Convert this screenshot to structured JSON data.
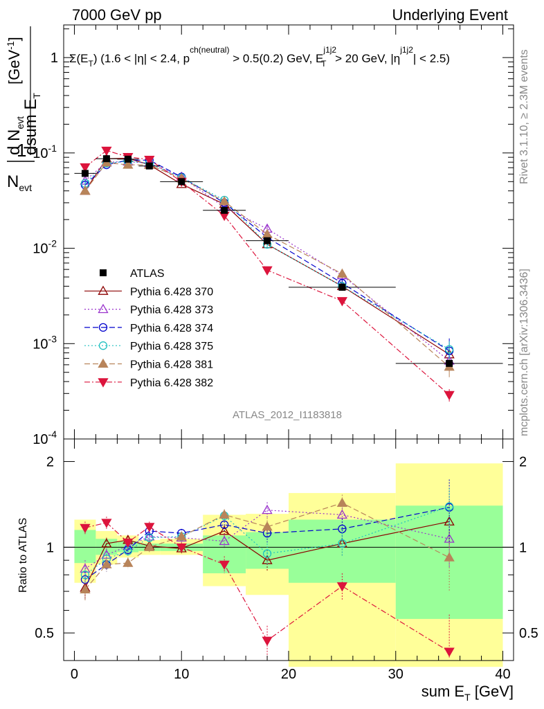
{
  "header": {
    "left": "7000 GeV pp",
    "right": "Underlying Event"
  },
  "subtitle": {
    "a": "Σ(E",
    "b": "T",
    "c": ") (1.6 < |η| < 2.4, p",
    "d": "ch(neutral)",
    "e": " > 0.5(0.2) GeV, E",
    "f": "j1j2",
    "g": "T",
    "h": " > 20 GeV, |η",
    "i": "j1j2",
    "j": "| < 2.5)"
  },
  "analysis_tag": "ATLAS_2012_I1183818",
  "side_text": {
    "rivet": "Rivet 3.1.10, ≥ 2.3M events",
    "mcplots": "mcplots.cern.ch [arXiv:1306.3436]"
  },
  "y_label": {
    "one": "1",
    "nevt": "N",
    "evt_sub": "evt",
    "num": "d N",
    "num_sub": "evt",
    "den": "dsum E",
    "den_sub": "T",
    "unit": "[GeV",
    "unit_sup": "-1",
    "unit_end": "]"
  },
  "ratio_label": "Ratio to ATLAS",
  "x_label": {
    "main": "sum E",
    "sub": "T",
    "unit": " [GeV]"
  },
  "chart_data": {
    "type": "line",
    "x_range": [
      -1,
      41
    ],
    "main_y_range": [
      0.0001,
      2.2
    ],
    "main_y_scale": "log",
    "ratio_y_range": [
      0.4,
      2.4
    ],
    "ratio_y_scale": "log",
    "x_ticks": [
      "0",
      "10",
      "20",
      "30",
      "40"
    ],
    "main_y_ticks": [
      {
        "base": "1",
        "exp": ""
      },
      {
        "base": "10",
        "exp": "-1"
      },
      {
        "base": "10",
        "exp": "-2"
      },
      {
        "base": "10",
        "exp": "-3"
      },
      {
        "base": "10",
        "exp": "-4"
      }
    ],
    "main_y_tick_values": [
      1,
      0.1,
      0.01,
      0.001,
      0.0001
    ],
    "ratio_y_ticks": [
      "2",
      "1",
      "0.5"
    ],
    "ratio_y_tick_values": [
      2,
      1,
      0.5
    ],
    "legend_position": "middle-left",
    "bins": [
      {
        "lo": 0,
        "hi": 2,
        "x": 1
      },
      {
        "lo": 2,
        "hi": 4,
        "x": 3
      },
      {
        "lo": 4,
        "hi": 6,
        "x": 5
      },
      {
        "lo": 6,
        "hi": 8,
        "x": 7
      },
      {
        "lo": 8,
        "hi": 12,
        "x": 10
      },
      {
        "lo": 12,
        "hi": 16,
        "x": 14
      },
      {
        "lo": 16,
        "hi": 20,
        "x": 18
      },
      {
        "lo": 20,
        "hi": 30,
        "x": 25
      },
      {
        "lo": 30,
        "hi": 40,
        "x": 35
      }
    ],
    "data": {
      "name": "ATLAS",
      "color": "#000000",
      "values": [
        0.061,
        0.087,
        0.086,
        0.073,
        0.05,
        0.025,
        0.012,
        0.0039,
        0.00062
      ]
    },
    "band_green": [
      {
        "lo": 0.88,
        "hi": 1.15
      },
      {
        "lo": 0.94,
        "hi": 1.07
      },
      {
        "lo": 0.96,
        "hi": 1.05
      },
      {
        "lo": 0.97,
        "hi": 1.03
      },
      {
        "lo": 0.97,
        "hi": 1.03
      },
      {
        "lo": 0.81,
        "hi": 1.1
      },
      {
        "lo": 0.84,
        "hi": 1.13
      },
      {
        "lo": 0.75,
        "hi": 1.25
      },
      {
        "lo": 0.56,
        "hi": 1.4
      }
    ],
    "band_yellow": [
      {
        "lo": 0.75,
        "hi": 1.25
      },
      {
        "lo": 0.87,
        "hi": 1.14
      },
      {
        "lo": 0.92,
        "hi": 1.1
      },
      {
        "lo": 0.94,
        "hi": 1.06
      },
      {
        "lo": 0.94,
        "hi": 1.07
      },
      {
        "lo": 0.73,
        "hi": 1.3
      },
      {
        "lo": 0.68,
        "hi": 1.31
      },
      {
        "lo": 0.38,
        "hi": 1.55
      },
      {
        "lo": 0.38,
        "hi": 1.97
      }
    ],
    "series": [
      {
        "name": "Pythia 6.428 370",
        "color": "#8b0000",
        "dash": "",
        "marker": "triangle-open",
        "values": [
          0.04,
          0.087,
          0.088,
          0.075,
          0.047,
          0.029,
          0.011,
          0.004,
          0.00077
        ],
        "ratio": [
          0.72,
          1.03,
          1.06,
          1.01,
          0.99,
          1.14,
          0.9,
          1.03,
          1.23
        ],
        "ratio_err": [
          0.06,
          0.05,
          0.04,
          0.04,
          0.04,
          0.06,
          0.08,
          0.1,
          0.22
        ]
      },
      {
        "name": "Pythia 6.428 373",
        "color": "#9932cc",
        "dash": "2,3",
        "marker": "triangle-open",
        "values": [
          0.051,
          0.08,
          0.081,
          0.078,
          0.056,
          0.027,
          0.016,
          0.0052,
          0.00066
        ],
        "ratio": [
          0.84,
          0.94,
          1.01,
          1.09,
          1.08,
          1.05,
          1.35,
          1.3,
          1.07
        ],
        "ratio_err": [
          0.06,
          0.05,
          0.04,
          0.04,
          0.04,
          0.06,
          0.09,
          0.11,
          0.22
        ]
      },
      {
        "name": "Pythia 6.428 374",
        "color": "#0000cd",
        "dash": "8,4",
        "marker": "circle-open",
        "values": [
          0.046,
          0.075,
          0.084,
          0.084,
          0.056,
          0.03,
          0.013,
          0.0043,
          0.00084
        ],
        "ratio": [
          0.77,
          0.87,
          0.98,
          1.14,
          1.12,
          1.2,
          1.12,
          1.16,
          1.38
        ],
        "ratio_err": [
          0.05,
          0.05,
          0.04,
          0.04,
          0.04,
          0.06,
          0.08,
          0.1,
          0.35
        ]
      },
      {
        "name": "Pythia 6.428 375",
        "color": "#20c0c0",
        "dash": "2,3",
        "marker": "circle-open",
        "values": [
          0.048,
          0.078,
          0.082,
          0.078,
          0.055,
          0.032,
          0.011,
          0.004,
          0.00087
        ],
        "ratio": [
          0.8,
          0.91,
          0.97,
          1.08,
          1.09,
          1.29,
          0.95,
          1.03,
          1.39
        ],
        "ratio_err": [
          0.05,
          0.05,
          0.04,
          0.04,
          0.04,
          0.06,
          0.08,
          0.1,
          0.22
        ]
      },
      {
        "name": "Pythia 6.428 381",
        "color": "#b8845a",
        "dash": "8,4",
        "marker": "triangle-filled",
        "values": [
          0.04,
          0.079,
          0.075,
          0.075,
          0.054,
          0.031,
          0.014,
          0.0054,
          0.00057
        ],
        "ratio": [
          0.71,
          0.87,
          0.88,
          1.0,
          1.09,
          1.3,
          1.18,
          1.43,
          0.92
        ],
        "ratio_err": [
          0.06,
          0.05,
          0.04,
          0.04,
          0.04,
          0.06,
          0.09,
          0.1,
          0.22
        ]
      },
      {
        "name": "Pythia 6.428 382",
        "color": "#dc143c",
        "dash": "8,3,2,3",
        "marker": "triangle-down-filled",
        "values": [
          0.071,
          0.106,
          0.091,
          0.085,
          0.05,
          0.022,
          0.0059,
          0.0028,
          0.00029
        ],
        "ratio": [
          1.17,
          1.22,
          1.04,
          1.18,
          1.0,
          0.87,
          0.47,
          0.73,
          0.43
        ],
        "ratio_err": [
          0.06,
          0.06,
          0.05,
          0.05,
          0.04,
          0.06,
          0.06,
          0.08,
          0.15
        ]
      }
    ]
  }
}
